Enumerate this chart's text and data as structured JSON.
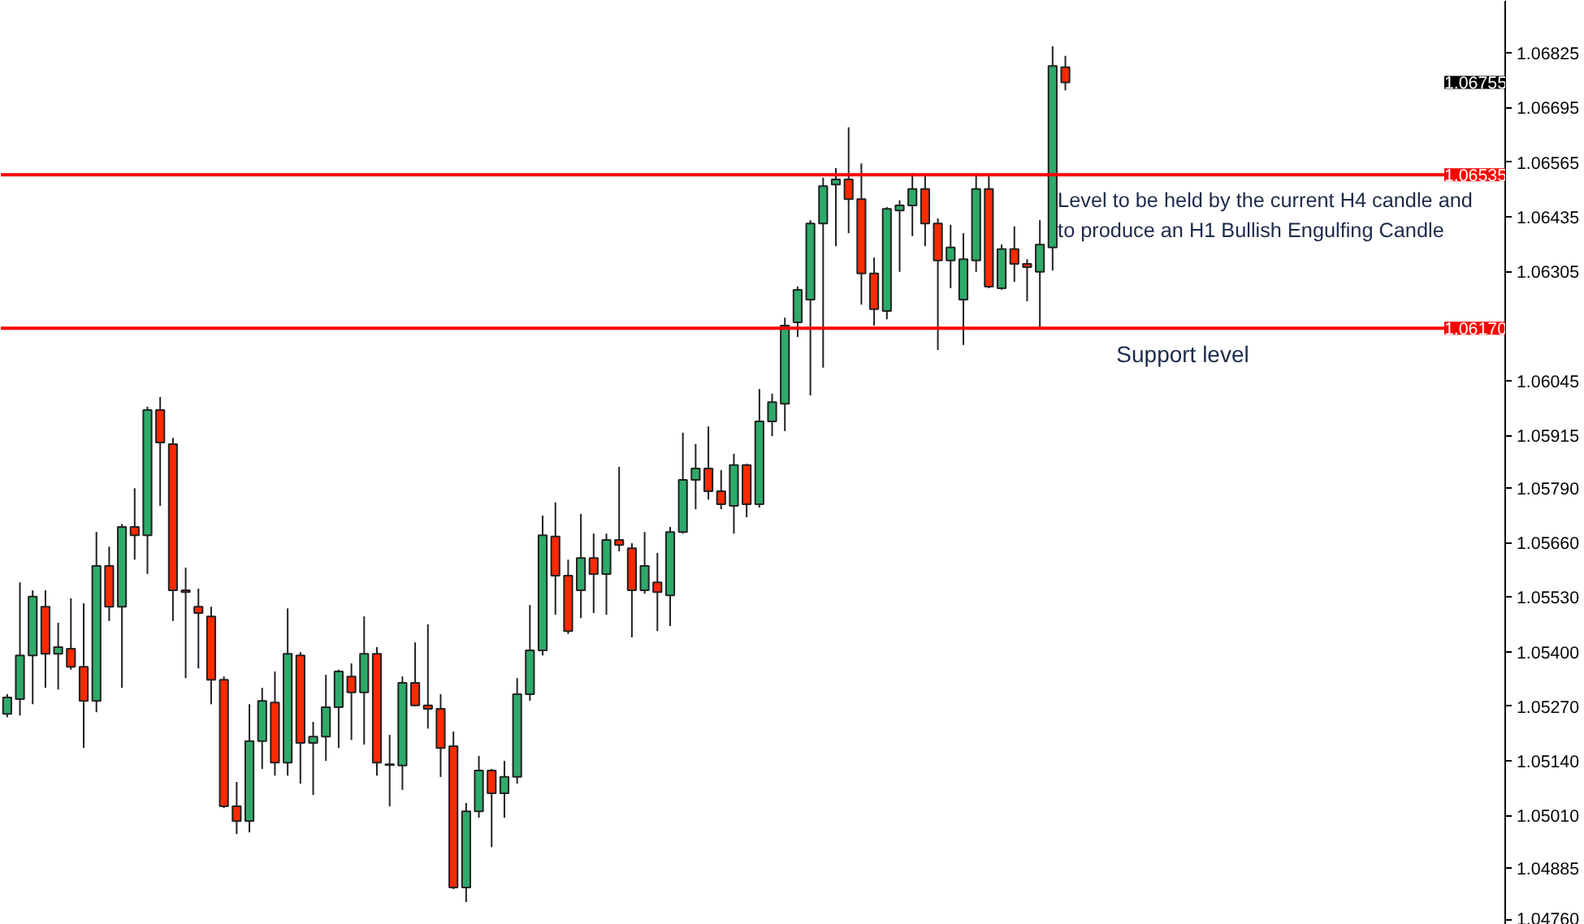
{
  "chart_data": {
    "type": "candlestick",
    "categories": [
      null,
      null,
      null,
      null,
      null,
      null,
      null,
      null,
      null,
      null,
      null,
      null,
      null,
      null,
      null,
      null,
      null,
      null,
      null,
      null,
      null,
      null,
      null,
      null,
      null,
      null,
      null,
      null,
      null,
      null,
      null,
      null,
      null,
      null,
      null,
      null,
      null,
      null,
      null,
      null,
      null,
      null,
      null,
      null,
      null,
      null,
      null,
      null,
      null,
      null,
      null,
      null,
      null,
      null,
      null,
      null,
      null,
      null,
      null,
      null,
      null,
      null,
      null,
      null,
      null,
      null,
      null,
      null,
      null,
      null,
      null,
      null,
      null,
      null,
      null,
      null,
      null,
      null,
      null,
      null,
      null,
      null,
      null,
      null,
      null,
      null,
      null,
      null,
      null,
      null,
      null,
      null,
      null,
      null,
      null,
      null,
      null,
      null,
      null,
      null,
      null,
      null,
      null,
      null,
      null,
      null,
      null,
      null,
      null,
      null,
      null,
      null,
      null,
      null,
      null,
      null,
      null,
      null
    ],
    "ohlc": [
      [
        1.05252,
        1.05299,
        1.05244,
        1.05291
      ],
      [
        1.05287,
        1.05565,
        1.05248,
        1.05391
      ],
      [
        1.05391,
        1.05546,
        1.05275,
        1.05531
      ],
      [
        1.05507,
        1.05546,
        1.05314,
        1.05395
      ],
      [
        1.05395,
        1.05469,
        1.0531,
        1.05411
      ],
      [
        1.05407,
        1.05527,
        1.05357,
        1.05364
      ],
      [
        1.05364,
        1.05515,
        1.05171,
        1.05283
      ],
      [
        1.05283,
        1.05685,
        1.05256,
        1.05604
      ],
      [
        1.05604,
        1.0565,
        1.05473,
        1.05507
      ],
      [
        1.05507,
        1.05704,
        1.05314,
        1.05697
      ],
      [
        1.05697,
        1.05789,
        1.05619,
        1.05677
      ],
      [
        1.05677,
        1.05983,
        1.05585,
        1.05975
      ],
      [
        1.05975,
        1.06006,
        1.05747,
        1.05898
      ],
      [
        1.05894,
        1.05909,
        1.05473,
        1.05546
      ],
      [
        1.05546,
        1.056,
        1.05337,
        1.05542
      ],
      [
        1.05507,
        1.0555,
        1.0536,
        1.05492
      ],
      [
        1.05484,
        1.05507,
        1.05275,
        1.05333
      ],
      [
        1.05333,
        1.05341,
        1.05028,
        1.05032
      ],
      [
        1.05032,
        1.0509,
        1.04966,
        1.04997
      ],
      [
        1.04997,
        1.05275,
        1.0497,
        1.05187
      ],
      [
        1.05187,
        1.05314,
        1.05121,
        1.05283
      ],
      [
        1.05279,
        1.05353,
        1.05105,
        1.05136
      ],
      [
        1.05136,
        1.05503,
        1.05105,
        1.05395
      ],
      [
        1.05391,
        1.05399,
        1.05086,
        1.05183
      ],
      [
        1.05183,
        1.05233,
        1.05059,
        1.05198
      ],
      [
        1.05198,
        1.05345,
        1.0514,
        1.05268
      ],
      [
        1.05268,
        1.05357,
        1.05171,
        1.05353
      ],
      [
        1.05341,
        1.05372,
        1.0519,
        1.05303
      ],
      [
        1.05303,
        1.05484,
        1.05179,
        1.05395
      ],
      [
        1.05395,
        1.05411,
        1.05105,
        1.05136
      ],
      [
        1.05132,
        1.05202,
        1.05032,
        1.0513
      ],
      [
        1.05129,
        1.05341,
        1.05071,
        1.05326
      ],
      [
        1.05326,
        1.05422,
        1.0527,
        1.05272
      ],
      [
        1.05272,
        1.05465,
        1.05217,
        1.05264
      ],
      [
        1.05264,
        1.05299,
        1.05102,
        1.05171
      ],
      [
        1.05175,
        1.0521,
        1.04835,
        1.04839
      ],
      [
        1.04839,
        1.0504,
        1.04804,
        1.0502
      ],
      [
        1.0502,
        1.05152,
        1.05005,
        1.05117
      ],
      [
        1.05117,
        1.05121,
        1.04935,
        1.05063
      ],
      [
        1.05063,
        1.0514,
        1.05005,
        1.05102
      ],
      [
        1.05102,
        1.05337,
        1.05086,
        1.05299
      ],
      [
        1.05299,
        1.05511,
        1.05283,
        1.05403
      ],
      [
        1.05403,
        1.05724,
        1.05391,
        1.05677
      ],
      [
        1.05674,
        1.05755,
        1.05488,
        1.05581
      ],
      [
        1.05581,
        1.05619,
        1.05442,
        1.05449
      ],
      [
        1.05546,
        1.05728,
        1.0548,
        1.05623
      ],
      [
        1.05623,
        1.05681,
        1.05492,
        1.05585
      ],
      [
        1.05585,
        1.05681,
        1.05488,
        1.05666
      ],
      [
        1.05666,
        1.0584,
        1.05639,
        1.05654
      ],
      [
        1.05646,
        1.05658,
        1.05434,
        1.05546
      ],
      [
        1.05546,
        1.05685,
        1.05538,
        1.05604
      ],
      [
        1.05565,
        1.05635,
        1.05449,
        1.05542
      ],
      [
        1.05534,
        1.05697,
        1.05461,
        1.05685
      ],
      [
        1.05685,
        1.05921,
        1.05681,
        1.05809
      ],
      [
        1.05809,
        1.05894,
        1.05739,
        1.05836
      ],
      [
        1.05836,
        1.05936,
        1.05762,
        1.05782
      ],
      [
        1.05782,
        1.05832,
        1.05739,
        1.05751
      ],
      [
        1.05747,
        1.05871,
        1.05681,
        1.05844
      ],
      [
        1.05844,
        1.05847,
        1.0572,
        1.05751
      ],
      [
        1.05751,
        1.06025,
        1.05743,
        1.05948
      ],
      [
        1.05948,
        1.06014,
        1.05913,
        1.05994
      ],
      [
        1.0599,
        1.06195,
        1.05925,
        1.06176
      ],
      [
        1.06184,
        1.06269,
        1.06149,
        1.06261
      ],
      [
        1.06238,
        1.06427,
        1.0601,
        1.06419
      ],
      [
        1.06419,
        1.06528,
        1.06076,
        1.06508
      ],
      [
        1.06512,
        1.06551,
        1.06365,
        1.06524
      ],
      [
        1.06524,
        1.06648,
        1.06396,
        1.06477
      ],
      [
        1.06477,
        1.06562,
        1.06226,
        1.063
      ],
      [
        1.063,
        1.06338,
        1.06176,
        1.06215
      ],
      [
        1.06211,
        1.06458,
        1.06191,
        1.06454
      ],
      [
        1.0645,
        1.06474,
        1.06304,
        1.06462
      ],
      [
        1.06462,
        1.06539,
        1.06389,
        1.06501
      ],
      [
        1.06501,
        1.06532,
        1.06365,
        1.06419
      ],
      [
        1.06419,
        1.06431,
        1.06118,
        1.06331
      ],
      [
        1.06331,
        1.06416,
        1.06265,
        1.06362
      ],
      [
        1.06238,
        1.06396,
        1.0613,
        1.06334
      ],
      [
        1.06331,
        1.06539,
        1.06304,
        1.06501
      ],
      [
        1.06501,
        1.06532,
        1.06265,
        1.06269
      ],
      [
        1.06265,
        1.06369,
        1.06261,
        1.06358
      ],
      [
        1.06358,
        1.06412,
        1.0628,
        1.06323
      ],
      [
        1.06323,
        1.06334,
        1.06234,
        1.06315
      ],
      [
        1.06304,
        1.06427,
        1.06168,
        1.06369
      ],
      [
        1.06362,
        1.06841,
        1.06307,
        1.06794
      ],
      [
        1.06791,
        1.06818,
        1.06736,
        1.06755
      ],
      null,
      null,
      null,
      null,
      null,
      null,
      null,
      null,
      null,
      null,
      null,
      null,
      null,
      null,
      null,
      null,
      null,
      null,
      null,
      null,
      null,
      null,
      null,
      null,
      null,
      null,
      null,
      null,
      null,
      null,
      null,
      null,
      null,
      null
    ],
    "ylim": [
      1.0475,
      1.06949
    ],
    "yticks": [
      {
        "value": 1.06825,
        "label": "1.06825"
      },
      {
        "value": 1.06695,
        "label": "1.06695"
      },
      {
        "value": 1.06565,
        "label": "1.06565"
      },
      {
        "value": 1.06435,
        "label": "1.06435"
      },
      {
        "value": 1.06305,
        "label": "1.06305"
      },
      {
        "value": 1.06045,
        "label": "1.06045"
      },
      {
        "value": 1.05915,
        "label": "1.05915"
      },
      {
        "value": 1.0579,
        "label": "1.05790"
      },
      {
        "value": 1.0566,
        "label": "1.05660"
      },
      {
        "value": 1.0553,
        "label": "1.05530"
      },
      {
        "value": 1.054,
        "label": "1.05400"
      },
      {
        "value": 1.0527,
        "label": "1.05270"
      },
      {
        "value": 1.0514,
        "label": "1.05140"
      },
      {
        "value": 1.0501,
        "label": "1.05010"
      },
      {
        "value": 1.04885,
        "label": "1.04885"
      },
      {
        "value": 1.0476,
        "label": "1.04760"
      }
    ],
    "tick_labels": "y",
    "ref_lines": [
      {
        "axis": "y",
        "value": 1.06535,
        "label": "1.06535",
        "color": "#ff0000"
      },
      {
        "axis": "y",
        "value": 1.0617,
        "label": "1.06170",
        "color": "#ff0000"
      }
    ],
    "annotations": [
      {
        "text": "Level to be held by the current H4 candle and\nto produce an H1 Bullish Engulfing Candle",
        "y": 1.06535
      },
      {
        "text": "Support level",
        "y": 1.0617
      },
      "1.06755"
    ]
  }
}
